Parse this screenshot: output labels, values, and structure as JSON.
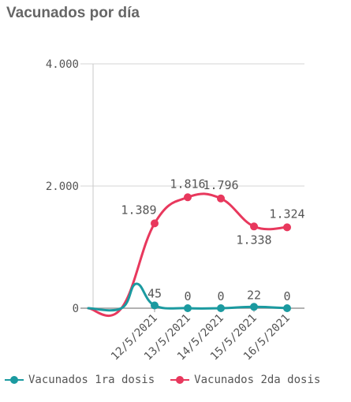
{
  "chart_data": {
    "type": "line",
    "title": "Vacunados por día",
    "categories": [
      "12/5/2021",
      "13/5/2021",
      "14/5/2021",
      "15/5/2021",
      "16/5/2021"
    ],
    "lead_in": {
      "x_offsets": [
        -2,
        -1
      ],
      "series_values": [
        [
          0,
          0
        ],
        [
          0,
          0
        ]
      ]
    },
    "series": [
      {
        "name": "Vacunados 1ra dosis",
        "color": "#1b9aa0",
        "start_value": 400,
        "values": [
          45,
          0,
          0,
          22,
          0
        ],
        "labels": [
          "45",
          "0",
          "0",
          "22",
          "0"
        ],
        "label_side": [
          "above",
          "above",
          "above",
          "above",
          "above"
        ]
      },
      {
        "name": "Vacunados 2da dosis",
        "color": "#e8385d",
        "values": [
          1389,
          1816,
          1796,
          1338,
          1324
        ],
        "labels": [
          "1.389",
          "1.816",
          "1.796",
          "1.338",
          "1.324"
        ],
        "label_side": [
          "left",
          "above",
          "above",
          "below",
          "above"
        ]
      }
    ],
    "y_ticks": [
      0,
      2000,
      4000
    ],
    "y_tick_labels": [
      "0",
      "2.000",
      "4.000"
    ],
    "ylim": [
      0,
      4000
    ],
    "grid": true,
    "legend": "bottom"
  }
}
